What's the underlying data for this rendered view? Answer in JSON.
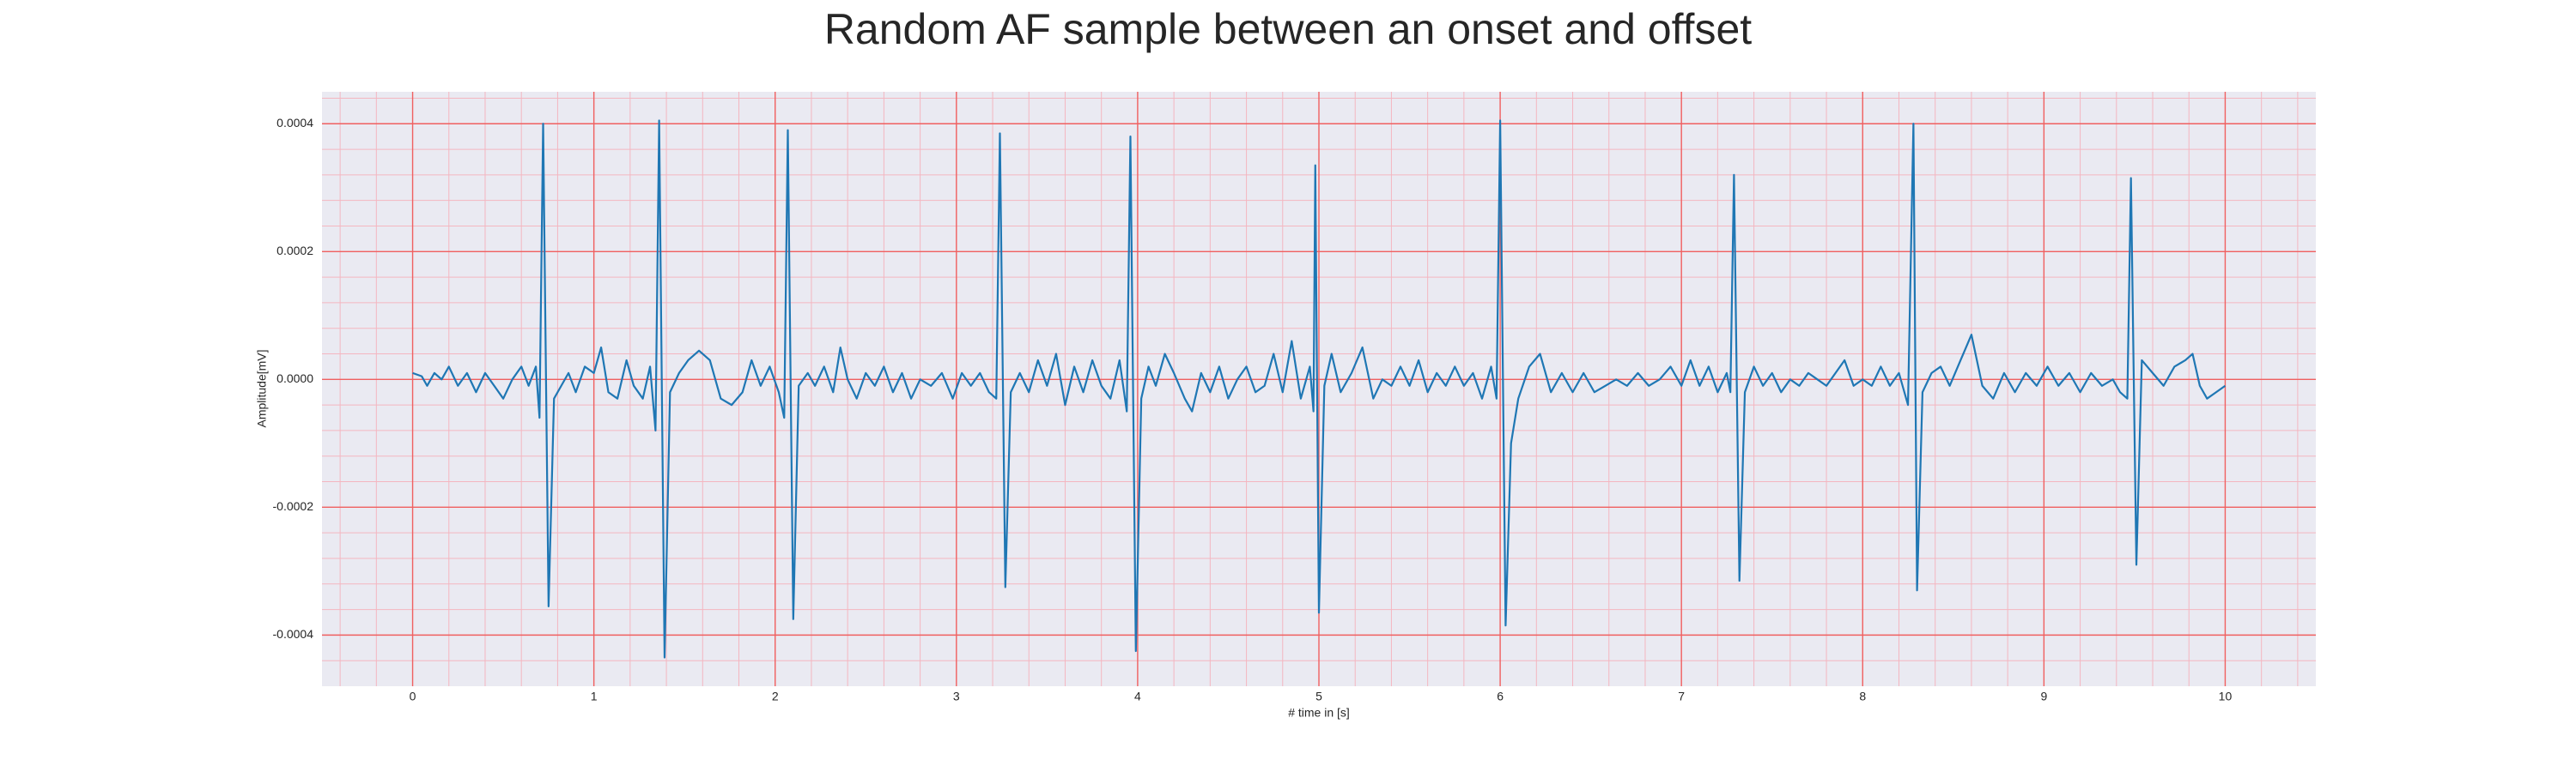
{
  "chart_data": {
    "type": "line",
    "title": "Random AF sample between an onset and offset",
    "x_label": "# time in [s]",
    "y_label": "Amplitude[mV]",
    "color": "#1f77b4",
    "grid": true,
    "xlim": [
      -0.5,
      10.5
    ],
    "ylim": [
      -0.00048,
      0.00045
    ],
    "xticks": [
      0,
      1,
      2,
      3,
      4,
      5,
      6,
      7,
      8,
      9,
      10
    ],
    "yticks": [
      -0.0004,
      -0.0002,
      {
        "value": 0,
        "label": "0.0000"
      },
      0.0002,
      0.0004
    ],
    "x": [
      0,
      0.05,
      0.08,
      0.12,
      0.16,
      0.2,
      0.25,
      0.3,
      0.35,
      0.4,
      0.45,
      0.5,
      0.55,
      0.6,
      0.64,
      0.68,
      0.7,
      0.72,
      0.75,
      0.78,
      0.82,
      0.86,
      0.9,
      0.95,
      1,
      1.04,
      1.08,
      1.13,
      1.18,
      1.22,
      1.27,
      1.31,
      1.34,
      1.36,
      1.39,
      1.42,
      1.47,
      1.52,
      1.58,
      1.64,
      1.7,
      1.76,
      1.82,
      1.87,
      1.92,
      1.97,
      2.02,
      2.05,
      2.07,
      2.1,
      2.13,
      2.18,
      2.22,
      2.27,
      2.32,
      2.36,
      2.4,
      2.45,
      2.5,
      2.55,
      2.6,
      2.65,
      2.7,
      2.75,
      2.8,
      2.86,
      2.92,
      2.98,
      3.03,
      3.08,
      3.13,
      3.18,
      3.22,
      3.24,
      3.27,
      3.3,
      3.35,
      3.4,
      3.45,
      3.5,
      3.55,
      3.6,
      3.65,
      3.7,
      3.75,
      3.8,
      3.85,
      3.9,
      3.94,
      3.96,
      3.99,
      4.02,
      4.06,
      4.1,
      4.15,
      4.2,
      4.26,
      4.3,
      4.35,
      4.4,
      4.45,
      4.5,
      4.55,
      4.6,
      4.65,
      4.7,
      4.75,
      4.8,
      4.85,
      4.9,
      4.95,
      4.97,
      4.98,
      5,
      5.03,
      5.07,
      5.12,
      5.18,
      5.24,
      5.3,
      5.35,
      5.4,
      5.45,
      5.5,
      5.55,
      5.6,
      5.65,
      5.7,
      5.75,
      5.8,
      5.85,
      5.9,
      5.95,
      5.98,
      6,
      6.03,
      6.06,
      6.1,
      6.16,
      6.22,
      6.28,
      6.34,
      6.4,
      6.46,
      6.52,
      6.58,
      6.64,
      6.7,
      6.76,
      6.82,
      6.88,
      6.94,
      7,
      7.05,
      7.1,
      7.15,
      7.2,
      7.25,
      7.27,
      7.29,
      7.32,
      7.35,
      7.4,
      7.45,
      7.5,
      7.55,
      7.6,
      7.65,
      7.7,
      7.75,
      7.8,
      7.85,
      7.9,
      7.95,
      8,
      8.05,
      8.1,
      8.15,
      8.2,
      8.25,
      8.28,
      8.3,
      8.33,
      8.38,
      8.43,
      8.48,
      8.54,
      8.6,
      8.66,
      8.72,
      8.78,
      8.84,
      8.9,
      8.96,
      9.02,
      9.08,
      9.14,
      9.2,
      9.26,
      9.32,
      9.38,
      9.42,
      9.46,
      9.48,
      9.51,
      9.54,
      9.6,
      9.66,
      9.72,
      9.78,
      9.82,
      9.86,
      9.9,
      9.95,
      10
    ],
    "values": [
      1e-05,
      5e-06,
      -1e-05,
      1e-05,
      0,
      2e-05,
      -1e-05,
      1e-05,
      -2e-05,
      1e-05,
      -1e-05,
      -3e-05,
      0,
      2e-05,
      -1e-05,
      2e-05,
      -6e-05,
      0.0004,
      -0.000355,
      -3e-05,
      -1e-05,
      1e-05,
      -2e-05,
      2e-05,
      1e-05,
      5e-05,
      -2e-05,
      -3e-05,
      3e-05,
      -1e-05,
      -3e-05,
      2e-05,
      -8e-05,
      0.000405,
      -0.000435,
      -2e-05,
      1e-05,
      3e-05,
      4.5e-05,
      3e-05,
      -3e-05,
      -4e-05,
      -2e-05,
      3e-05,
      -1e-05,
      2e-05,
      -2e-05,
      -6e-05,
      0.00039,
      -0.000375,
      -1e-05,
      1e-05,
      -1e-05,
      2e-05,
      -2e-05,
      5e-05,
      0,
      -3e-05,
      1e-05,
      -1e-05,
      2e-05,
      -2e-05,
      1e-05,
      -3e-05,
      0,
      -1e-05,
      1e-05,
      -3e-05,
      1e-05,
      -1e-05,
      1e-05,
      -2e-05,
      -3e-05,
      0.000385,
      -0.000325,
      -2e-05,
      1e-05,
      -2e-05,
      3e-05,
      -1e-05,
      4e-05,
      -4e-05,
      2e-05,
      -2e-05,
      3e-05,
      -1e-05,
      -3e-05,
      3e-05,
      -5e-05,
      0.00038,
      -0.000425,
      -3e-05,
      2e-05,
      -1e-05,
      4e-05,
      1e-05,
      -3e-05,
      -5e-05,
      1e-05,
      -2e-05,
      2e-05,
      -3e-05,
      0,
      2e-05,
      -2e-05,
      -1e-05,
      4e-05,
      -2e-05,
      6e-05,
      -3e-05,
      2e-05,
      -5e-05,
      0.000335,
      -0.000365,
      -1e-05,
      4e-05,
      -2e-05,
      1e-05,
      5e-05,
      -3e-05,
      0,
      -1e-05,
      2e-05,
      -1e-05,
      3e-05,
      -2e-05,
      1e-05,
      -1e-05,
      2e-05,
      -1e-05,
      1e-05,
      -3e-05,
      2e-05,
      -3e-05,
      0.000405,
      -0.000385,
      -0.0001,
      -3e-05,
      2e-05,
      4e-05,
      -2e-05,
      1e-05,
      -2e-05,
      1e-05,
      -2e-05,
      -1e-05,
      0,
      -1e-05,
      1e-05,
      -1e-05,
      0,
      2e-05,
      -1e-05,
      3e-05,
      -1e-05,
      2e-05,
      -2e-05,
      1e-05,
      -2e-05,
      0.00032,
      -0.000315,
      -2e-05,
      2e-05,
      -1e-05,
      1e-05,
      -2e-05,
      0,
      -1e-05,
      1e-05,
      0,
      -1e-05,
      1e-05,
      3e-05,
      -1e-05,
      0,
      -1e-05,
      2e-05,
      -1e-05,
      1e-05,
      -4e-05,
      0.0004,
      -0.00033,
      -2e-05,
      1e-05,
      2e-05,
      -1e-05,
      3e-05,
      7e-05,
      -1e-05,
      -3e-05,
      1e-05,
      -2e-05,
      1e-05,
      -1e-05,
      2e-05,
      -1e-05,
      1e-05,
      -2e-05,
      1e-05,
      -1e-05,
      0,
      -2e-05,
      -3e-05,
      0.000315,
      -0.00029,
      3e-05,
      1e-05,
      -1e-05,
      2e-05,
      3e-05,
      4e-05,
      -1e-05,
      -3e-05,
      -2e-05,
      -1e-05
    ]
  }
}
